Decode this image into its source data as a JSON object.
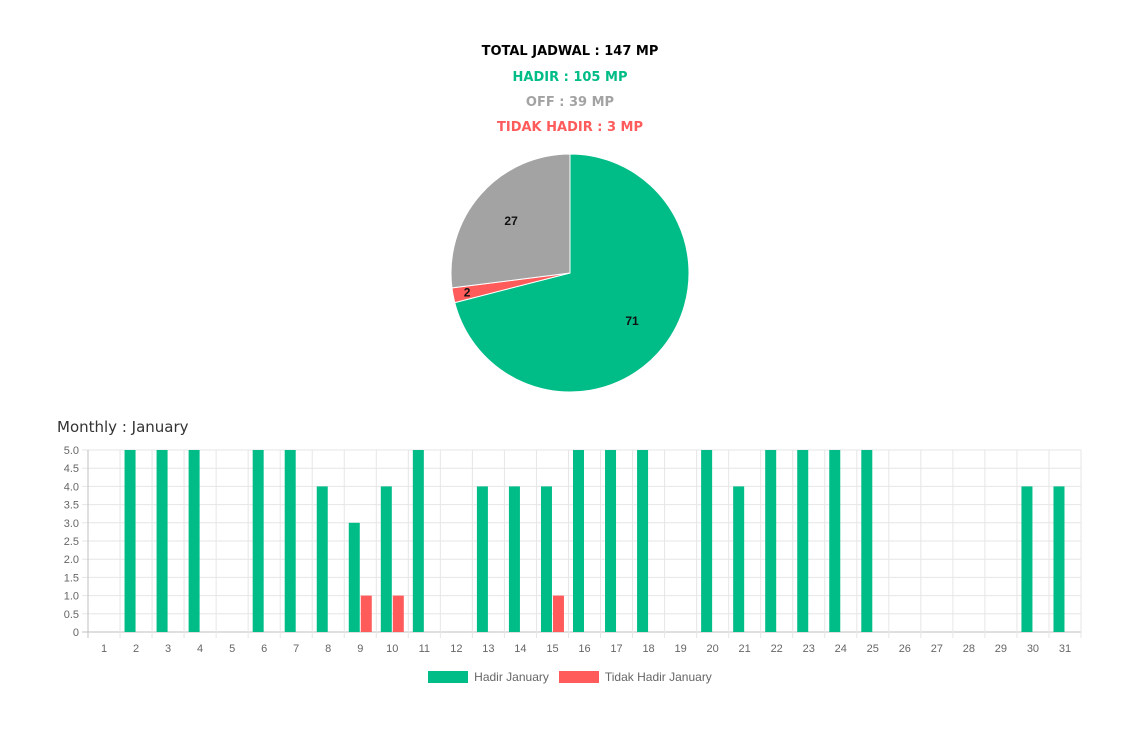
{
  "summary": {
    "total": "TOTAL JADWAL : 147 MP",
    "hadir": "HADIR : 105 MP",
    "off": "OFF : 39 MP",
    "tidak_hadir": "TIDAK HADIR : 3 MP"
  },
  "colors": {
    "total": "#000000",
    "hadir": "#00bc87",
    "off": "#a3a3a3",
    "tidak_hadir": "#ff5b5b"
  },
  "monthly_title": "Monthly : January",
  "chart_data": [
    {
      "type": "pie",
      "slices": [
        {
          "label": "Hadir",
          "value": 71,
          "color": "#00bc87"
        },
        {
          "label": "Tidak Hadir",
          "value": 2,
          "color": "#ff5b5b"
        },
        {
          "label": "Off",
          "value": 27,
          "color": "#a3a3a3"
        }
      ]
    },
    {
      "type": "bar",
      "categories": [
        "1",
        "2",
        "3",
        "4",
        "5",
        "6",
        "7",
        "8",
        "9",
        "10",
        "11",
        "12",
        "13",
        "14",
        "15",
        "16",
        "17",
        "18",
        "19",
        "20",
        "21",
        "22",
        "23",
        "24",
        "25",
        "26",
        "27",
        "28",
        "29",
        "30",
        "31"
      ],
      "series": [
        {
          "name": "Hadir January",
          "color": "#00bc87",
          "values": [
            0,
            5,
            5,
            5,
            0,
            5,
            5,
            4,
            3,
            4,
            5,
            0,
            4,
            4,
            4,
            5,
            5,
            5,
            0,
            5,
            4,
            5,
            5,
            5,
            5,
            0,
            0,
            0,
            0,
            4,
            4
          ]
        },
        {
          "name": "Tidak Hadir January",
          "color": "#ff5b5b",
          "values": [
            0,
            0,
            0,
            0,
            0,
            0,
            0,
            0,
            1,
            1,
            0,
            0,
            0,
            0,
            1,
            0,
            0,
            0,
            0,
            0,
            0,
            0,
            0,
            0,
            0,
            0,
            0,
            0,
            0,
            0,
            0
          ]
        }
      ],
      "yticks": [
        "5.0",
        "4.5",
        "4.0",
        "3.5",
        "3.0",
        "2.5",
        "2.0",
        "1.5",
        "1.0",
        "0.5",
        "0"
      ],
      "ylim": [
        0,
        5
      ],
      "grid": true,
      "legend": "bottom"
    }
  ]
}
